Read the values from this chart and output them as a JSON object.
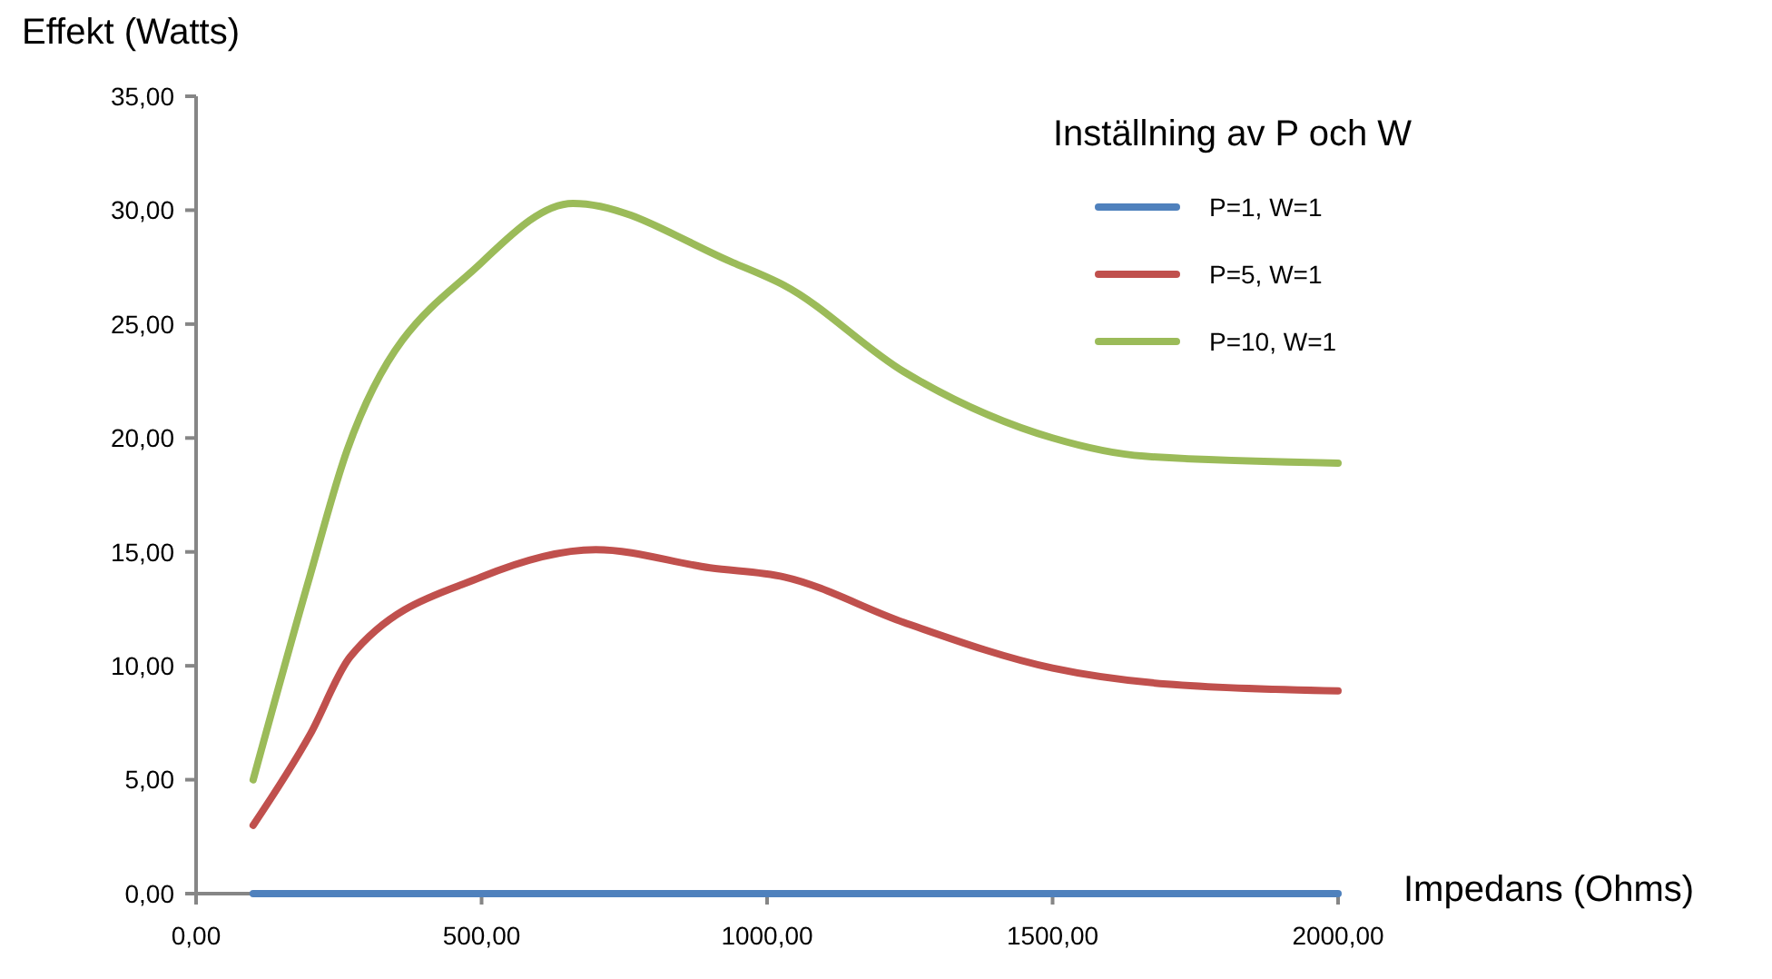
{
  "chart_data": {
    "type": "line",
    "xlabel": "Impedans (Ohms)",
    "ylabel": "Effekt (Watts)",
    "legend_title": "Inställning av P och W",
    "legend": "top right",
    "grid": false,
    "marker": "none",
    "line_style": "solid",
    "xlim": [
      0,
      2000
    ],
    "ylim": [
      0,
      35
    ],
    "xticks": [
      {
        "value": 0,
        "label": "0,00"
      },
      {
        "value": 500,
        "label": "500,00"
      },
      {
        "value": 1000,
        "label": "1000,00"
      },
      {
        "value": 1500,
        "label": "1500,00"
      },
      {
        "value": 2000,
        "label": "2000,00"
      }
    ],
    "yticks": [
      {
        "value": 0,
        "label": "0,00"
      },
      {
        "value": 5,
        "label": "5,00"
      },
      {
        "value": 10,
        "label": "10,00"
      },
      {
        "value": 15,
        "label": "15,00"
      },
      {
        "value": 20,
        "label": "20,00"
      },
      {
        "value": 25,
        "label": "25,00"
      },
      {
        "value": 30,
        "label": "30,00"
      },
      {
        "value": 35,
        "label": "35,00"
      }
    ],
    "series": [
      {
        "name": "P=1, W=1",
        "color": "#4f81bd",
        "x": [
          100,
          200,
          300,
          500,
          1000,
          1500,
          2000
        ],
        "values": [
          0,
          0,
          0,
          0,
          0,
          0,
          0
        ]
      },
      {
        "name": "P=5, W=1",
        "color": "#c0504d",
        "x": [
          100,
          200,
          270,
          500,
          700,
          900,
          1030,
          1240,
          1500,
          1700,
          2000
        ],
        "values": [
          3,
          7,
          10.4,
          13.9,
          15.1,
          14.3,
          13.9,
          11.9,
          9.9,
          9.2,
          8.9
        ]
      },
      {
        "name": "P=10, W=1",
        "color": "#9bbb59",
        "x": [
          100,
          200,
          265,
          500,
          660,
          940,
          1030,
          1240,
          1500,
          1660,
          2000
        ],
        "values": [
          5,
          14,
          19.5,
          27.7,
          30.3,
          27.7,
          26.7,
          22.9,
          20,
          19.2,
          18.9
        ]
      }
    ]
  }
}
